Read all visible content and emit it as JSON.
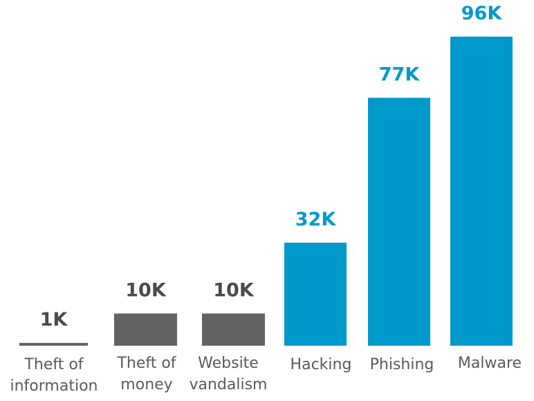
{
  "chart_data": {
    "type": "bar",
    "categories": [
      [
        "Theft of",
        "information"
      ],
      [
        "Theft of",
        "money"
      ],
      [
        "Website",
        "vandalism"
      ],
      [
        "Hacking"
      ],
      [
        "Phishing"
      ],
      [
        "Malware"
      ]
    ],
    "values": [
      1,
      10,
      10,
      32,
      77,
      96
    ],
    "value_labels": [
      "1K",
      "10K",
      "10K",
      "32K",
      "77K",
      "96K"
    ],
    "bar_colors": [
      "#636363",
      "#636363",
      "#636363",
      "#0099cc",
      "#0099cc",
      "#0099cc"
    ],
    "label_colors": [
      "#4a4a4a",
      "#4a4a4a",
      "#4a4a4a",
      "#0099cc",
      "#0099cc",
      "#0099cc"
    ],
    "title": "",
    "xlabel": "",
    "ylabel": "",
    "ylim": [
      0,
      96
    ],
    "grid": false,
    "legend": "none"
  }
}
